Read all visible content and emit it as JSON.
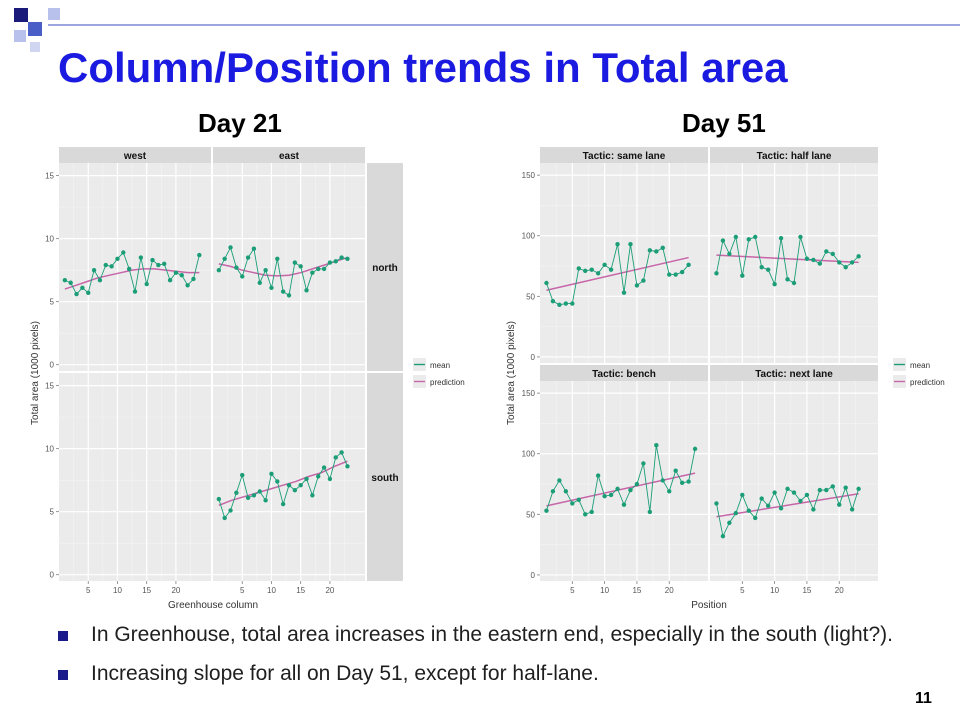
{
  "slide": {
    "title": "Column/Position trends in Total area",
    "page_number": "11",
    "bullets": [
      "In Greenhouse, total area increases in the eastern end, especially in the south (light?).",
      "Increasing slope for all on Day 51, except for half-lane."
    ],
    "colors": {
      "title": "#1a1ae0",
      "mean": "#1b9e77",
      "prediction": "#c665a8",
      "panel": "#ebebeb",
      "strip": "#d9d9d9"
    }
  },
  "chart_data": [
    {
      "type": "line",
      "title": "Day 21",
      "xlabel": "Greenhouse column",
      "ylabel": "Total area (1000 pixels)",
      "xlim": [
        0,
        26
      ],
      "ylim": [
        -0.5,
        16
      ],
      "x_ticks": [
        5,
        10,
        15,
        20
      ],
      "y_ticks": [
        0,
        5,
        10,
        15
      ],
      "columns": [
        "west",
        "east"
      ],
      "rows": [
        "north",
        "south"
      ],
      "legend": [
        "mean",
        "prediction"
      ],
      "legend_position": "right",
      "panels": [
        {
          "row": "north",
          "col": "west",
          "mean": [
            6.7,
            6.5,
            5.6,
            6.1,
            5.7,
            7.5,
            6.7,
            7.9,
            7.8,
            8.4,
            8.9,
            7.6,
            5.8,
            8.5,
            6.4,
            8.3,
            7.9,
            8.0,
            6.7,
            7.3,
            7.1,
            6.3,
            6.8,
            8.7
          ],
          "prediction": [
            6.0,
            6.3,
            6.6,
            6.9,
            7.1,
            7.3,
            7.5,
            7.6,
            7.6,
            7.5,
            7.4,
            7.3,
            7.3
          ]
        },
        {
          "row": "north",
          "col": "east",
          "mean": [
            7.5,
            8.4,
            9.3,
            7.7,
            7.0,
            8.5,
            9.2,
            6.5,
            7.5,
            6.1,
            8.4,
            5.8,
            5.5,
            8.1,
            7.8,
            5.9,
            7.3,
            7.6,
            7.6,
            8.1,
            8.2,
            8.5,
            8.4
          ],
          "prediction": [
            8.0,
            7.8,
            7.5,
            7.3,
            7.1,
            7.05,
            7.1,
            7.3,
            7.6,
            7.9,
            8.2,
            8.5
          ]
        },
        {
          "row": "south",
          "col": "west",
          "mean": [],
          "prediction": []
        },
        {
          "row": "south",
          "col": "east",
          "mean": [
            6.0,
            4.5,
            5.1,
            6.5,
            7.9,
            6.1,
            6.3,
            6.6,
            5.9,
            8.0,
            7.4,
            5.6,
            7.1,
            6.7,
            7.1,
            7.6,
            6.3,
            7.8,
            8.5,
            7.6,
            9.3,
            9.7,
            8.6
          ],
          "prediction": [
            5.5,
            5.9,
            6.2,
            6.5,
            6.8,
            7.1,
            7.4,
            7.8,
            8.1,
            8.6,
            9.0
          ]
        }
      ]
    },
    {
      "type": "line",
      "title": "Day 51",
      "xlabel": "Position",
      "ylabel": "Total area (1000 pixels)",
      "xlim": [
        0,
        26
      ],
      "ylim": [
        -5,
        160
      ],
      "x_ticks": [
        5,
        10,
        15,
        20
      ],
      "y_ticks": [
        0,
        50,
        100,
        150
      ],
      "strips": [
        "Tactic: same lane",
        "Tactic: half lane",
        "Tactic: bench",
        "Tactic: next lane"
      ],
      "legend": [
        "mean",
        "prediction"
      ],
      "legend_position": "right",
      "panels": [
        {
          "strip": "Tactic: same lane",
          "mean": [
            61,
            46,
            43,
            44,
            44,
            73,
            71,
            72,
            69,
            76,
            72,
            93,
            53,
            93,
            59,
            63,
            88,
            87,
            90,
            68,
            68,
            70,
            76
          ],
          "prediction": [
            55,
            82
          ]
        },
        {
          "strip": "Tactic: half lane",
          "mean": [
            69,
            96,
            85,
            99,
            67,
            97,
            99,
            74,
            72,
            60,
            98,
            64,
            61,
            99,
            81,
            80,
            77,
            87,
            85,
            78,
            74,
            78,
            83
          ],
          "prediction": [
            84,
            78
          ]
        },
        {
          "strip": "Tactic: bench",
          "mean": [
            53,
            69,
            78,
            69,
            59,
            62,
            50,
            52,
            82,
            65,
            66,
            71,
            58,
            70,
            75,
            92,
            52,
            107,
            78,
            69,
            86,
            76,
            77,
            104
          ],
          "prediction": [
            57,
            84
          ]
        },
        {
          "strip": "Tactic: next lane",
          "mean": [
            59,
            32,
            43,
            51,
            66,
            53,
            47,
            63,
            57,
            68,
            55,
            71,
            68,
            61,
            66,
            54,
            70,
            70,
            73,
            58,
            72,
            54,
            71
          ],
          "prediction": [
            48,
            67
          ]
        }
      ]
    }
  ]
}
